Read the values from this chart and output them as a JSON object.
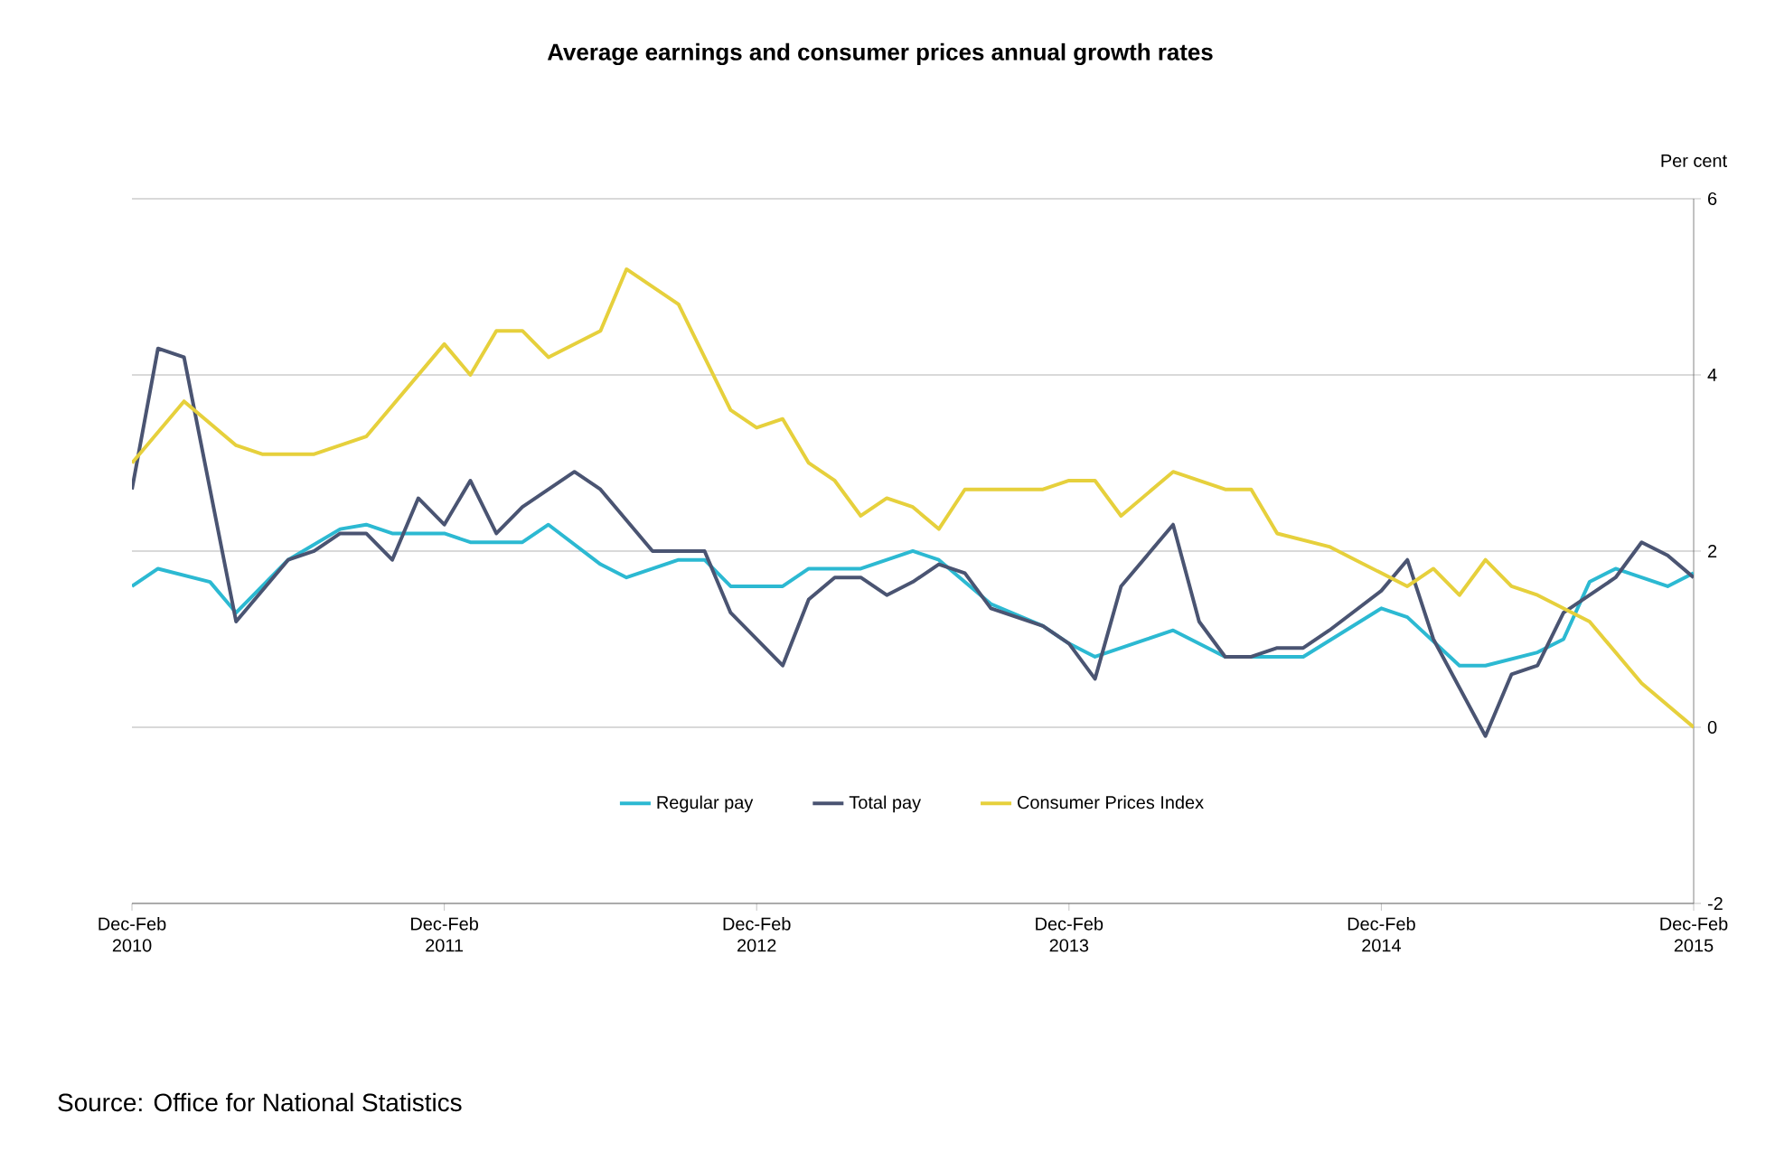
{
  "chart_data": {
    "type": "line",
    "title": "Average earnings and consumer prices annual growth rates",
    "ylabel": "Per cent",
    "xlim": [
      "2010-02",
      "2015-02"
    ],
    "xticks": [
      {
        "value": "2010-02",
        "label": "Dec-Feb 2010"
      },
      {
        "value": "2011-02",
        "label": "Dec-Feb 2011"
      },
      {
        "value": "2012-02",
        "label": "Dec-Feb 2012"
      },
      {
        "value": "2013-02",
        "label": "Dec-Feb 2013"
      },
      {
        "value": "2014-02",
        "label": "Dec-Feb 2014"
      },
      {
        "value": "2015-02",
        "label": "Dec-Feb 2015"
      }
    ],
    "ylim": [
      -2,
      6
    ],
    "yticks": [
      -2,
      0,
      2,
      4,
      6
    ],
    "grid": "y",
    "legend": "bottom",
    "marker": "none",
    "line_style": "solid",
    "series": [
      {
        "name": "Regular pay",
        "color": "#2cb9d2",
        "x": [
          "2010-02",
          "2010-03",
          "2010-05",
          "2010-06",
          "2010-08",
          "2010-10",
          "2010-11",
          "2010-12",
          "2011-02",
          "2011-03",
          "2011-05",
          "2011-06",
          "2011-08",
          "2011-09",
          "2011-11",
          "2011-12",
          "2012-01",
          "2012-03",
          "2012-04",
          "2012-06",
          "2012-08",
          "2012-09",
          "2012-11",
          "2013-01",
          "2013-02",
          "2013-03",
          "2013-05",
          "2013-06",
          "2013-08",
          "2013-11",
          "2014-02",
          "2014-03",
          "2014-05",
          "2014-06",
          "2014-08",
          "2014-09",
          "2014-10",
          "2014-11",
          "2015-01",
          "2015-02"
        ],
        "values": [
          1.6,
          1.8,
          1.65,
          1.3,
          1.9,
          2.25,
          2.3,
          2.2,
          2.2,
          2.1,
          2.1,
          2.3,
          1.85,
          1.7,
          1.9,
          1.9,
          1.6,
          1.6,
          1.8,
          1.8,
          2.0,
          1.9,
          1.4,
          1.15,
          0.95,
          0.8,
          1.0,
          1.1,
          0.8,
          0.8,
          1.35,
          1.25,
          0.7,
          0.7,
          0.85,
          1.0,
          1.65,
          1.8,
          1.6,
          1.75
        ]
      },
      {
        "name": "Total pay",
        "color": "#4a5472",
        "x": [
          "2010-02",
          "2010-03",
          "2010-04",
          "2010-06",
          "2010-08",
          "2010-09",
          "2010-10",
          "2010-11",
          "2010-12",
          "2011-01",
          "2011-02",
          "2011-03",
          "2011-04",
          "2011-05",
          "2011-07",
          "2011-08",
          "2011-10",
          "2011-12",
          "2012-01",
          "2012-03",
          "2012-04",
          "2012-05",
          "2012-06",
          "2012-07",
          "2012-08",
          "2012-09",
          "2012-10",
          "2012-11",
          "2013-01",
          "2013-02",
          "2013-03",
          "2013-04",
          "2013-06",
          "2013-07",
          "2013-08",
          "2013-09",
          "2013-10",
          "2013-11",
          "2013-12",
          "2014-02",
          "2014-03",
          "2014-04",
          "2014-06",
          "2014-07",
          "2014-08",
          "2014-09",
          "2014-11",
          "2014-12",
          "2015-01",
          "2015-02"
        ],
        "values": [
          2.7,
          4.3,
          4.2,
          1.2,
          1.9,
          2.0,
          2.2,
          2.2,
          1.9,
          2.6,
          2.3,
          2.8,
          2.2,
          2.5,
          2.9,
          2.7,
          2.0,
          2.0,
          1.3,
          0.7,
          1.45,
          1.7,
          1.7,
          1.5,
          1.65,
          1.85,
          1.75,
          1.35,
          1.15,
          0.95,
          0.55,
          1.6,
          2.3,
          1.2,
          0.8,
          0.8,
          0.9,
          0.9,
          1.1,
          1.55,
          1.9,
          1.0,
          -0.1,
          0.6,
          0.7,
          1.3,
          1.7,
          2.1,
          1.95,
          1.7
        ]
      },
      {
        "name": "Consumer Prices Index",
        "color": "#e6d03c",
        "x": [
          "2010-02",
          "2010-04",
          "2010-06",
          "2010-07",
          "2010-09",
          "2010-11",
          "2011-02",
          "2011-03",
          "2011-04",
          "2011-05",
          "2011-06",
          "2011-08",
          "2011-09",
          "2011-10",
          "2011-11",
          "2012-01",
          "2012-02",
          "2012-03",
          "2012-04",
          "2012-05",
          "2012-06",
          "2012-07",
          "2012-08",
          "2012-09",
          "2012-10",
          "2013-01",
          "2013-02",
          "2013-03",
          "2013-04",
          "2013-06",
          "2013-08",
          "2013-09",
          "2013-10",
          "2013-12",
          "2014-01",
          "2014-03",
          "2014-04",
          "2014-05",
          "2014-06",
          "2014-07",
          "2014-08",
          "2014-10",
          "2014-12",
          "2015-02"
        ],
        "values": [
          3.0,
          3.7,
          3.2,
          3.1,
          3.1,
          3.3,
          4.35,
          4.0,
          4.5,
          4.5,
          4.2,
          4.5,
          5.2,
          5.0,
          4.8,
          3.6,
          3.4,
          3.5,
          3.0,
          2.8,
          2.4,
          2.6,
          2.5,
          2.25,
          2.7,
          2.7,
          2.8,
          2.8,
          2.4,
          2.9,
          2.7,
          2.7,
          2.2,
          2.05,
          1.9,
          1.6,
          1.8,
          1.5,
          1.9,
          1.6,
          1.5,
          1.2,
          0.5,
          0.0
        ]
      }
    ],
    "annotations": [
      "Source: Office for National Statistics"
    ]
  }
}
